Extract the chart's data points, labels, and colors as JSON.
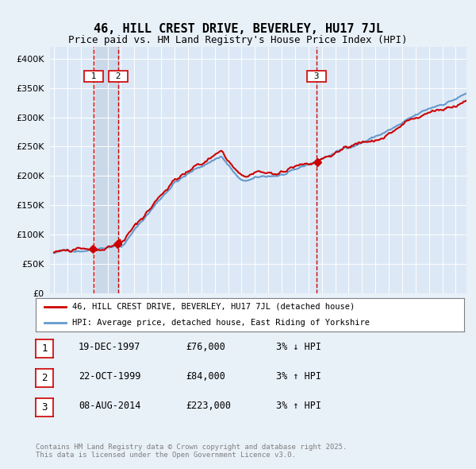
{
  "title": "46, HILL CREST DRIVE, BEVERLEY, HU17 7JL",
  "subtitle": "Price paid vs. HM Land Registry's House Price Index (HPI)",
  "legend_line1": "46, HILL CREST DRIVE, BEVERLEY, HU17 7JL (detached house)",
  "legend_line2": "HPI: Average price, detached house, East Riding of Yorkshire",
  "table": [
    {
      "num": 1,
      "date": "19-DEC-1997",
      "price": "£76,000",
      "pct": "3% ↓ HPI"
    },
    {
      "num": 2,
      "date": "22-OCT-1999",
      "price": "£84,000",
      "pct": "3% ↑ HPI"
    },
    {
      "num": 3,
      "date": "08-AUG-2014",
      "price": "£223,000",
      "pct": "3% ↑ HPI"
    }
  ],
  "copyright": "Contains HM Land Registry data © Crown copyright and database right 2025.\nThis data is licensed under the Open Government Licence v3.0.",
  "sale1_date": 1997.96,
  "sale2_date": 1999.8,
  "sale3_date": 2014.6,
  "sale1_price": 76000,
  "sale2_price": 84000,
  "sale3_price": 223000,
  "bg_color": "#e8f0f8",
  "plot_bg_color": "#dce8f5",
  "red_line_color": "#cc0000",
  "blue_line_color": "#6699cc",
  "vline_color": "#cc0000",
  "shade_color": "#c8d8e8",
  "ylim": [
    0,
    420000
  ],
  "yticks": [
    0,
    50000,
    100000,
    150000,
    200000,
    250000,
    300000,
    350000,
    400000
  ]
}
